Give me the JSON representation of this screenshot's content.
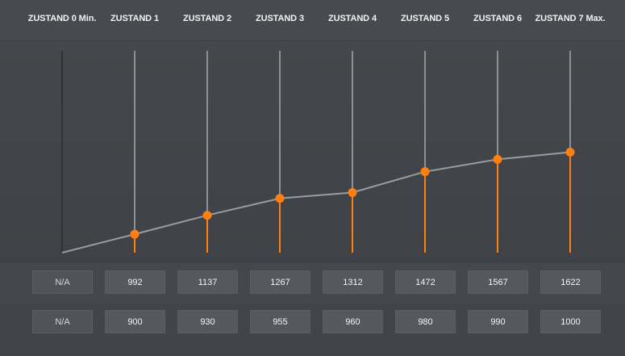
{
  "states": [
    {
      "label": "ZUSTAND 0 Min.",
      "value1": "N/A",
      "value2": "N/A"
    },
    {
      "label": "ZUSTAND 1",
      "value1": "992",
      "value2": "900"
    },
    {
      "label": "ZUSTAND 2",
      "value1": "1137",
      "value2": "930"
    },
    {
      "label": "ZUSTAND 3",
      "value1": "1267",
      "value2": "955"
    },
    {
      "label": "ZUSTAND 4",
      "value1": "1312",
      "value2": "960"
    },
    {
      "label": "ZUSTAND 5",
      "value1": "1472",
      "value2": "980"
    },
    {
      "label": "ZUSTAND 6",
      "value1": "1567",
      "value2": "990"
    },
    {
      "label": "ZUSTAND 7 Max.",
      "value1": "1622",
      "value2": "1000"
    }
  ],
  "chart_data": {
    "type": "line",
    "categories": [
      "ZUSTAND 0 Min.",
      "ZUSTAND 1",
      "ZUSTAND 2",
      "ZUSTAND 3",
      "ZUSTAND 4",
      "ZUSTAND 5",
      "ZUSTAND 6",
      "ZUSTAND 7 Max."
    ],
    "series": [
      {
        "values": [
          null,
          992,
          1137,
          1267,
          1312,
          1472,
          1567,
          1622
        ]
      }
    ],
    "start_point": 850,
    "ylim": [
      850,
      2400
    ],
    "grid": false,
    "colors": {
      "line": "#9a9ca0",
      "point": "#ff7f11",
      "stem_active": "#ff7f11",
      "stem_inactive": "#8e9094",
      "stem_first": "#2f3236"
    }
  }
}
